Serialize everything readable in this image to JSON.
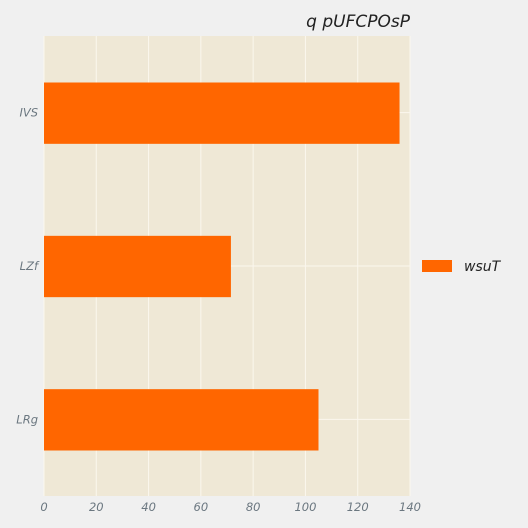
{
  "chart_data": {
    "type": "bar",
    "orientation": "horizontal",
    "title": "q  pUFCPOsP",
    "xlabel": "",
    "ylabel": "",
    "categories": [
      "IVS",
      "LZf",
      "LRg"
    ],
    "series": [
      {
        "name": "wsuT",
        "values": [
          136,
          71.5,
          105
        ],
        "color": "#ff6600"
      }
    ],
    "xlim": [
      0,
      140
    ],
    "xticks": [
      0,
      20,
      40,
      60,
      80,
      100,
      120,
      140
    ],
    "grid": true,
    "legend_position": "right"
  },
  "colors": {
    "page_background": "#f0f0f0",
    "plot_background": "#efe8d6",
    "grid": "#fbf7ee"
  }
}
